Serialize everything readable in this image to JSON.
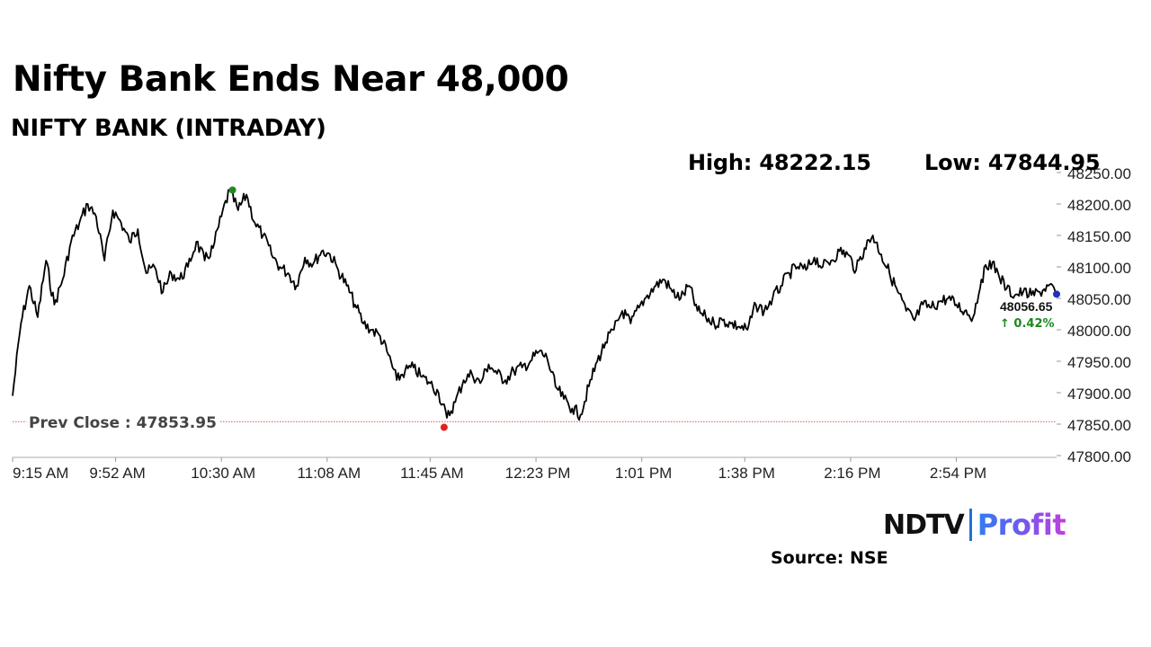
{
  "header": {
    "title": "Nifty Bank Ends Near 48,000",
    "subtitle": "NIFTY BANK (INTRADAY)",
    "high_label": "High: 48222.15",
    "low_label": "Low: 47844.95"
  },
  "footer": {
    "logo_left": "NDTV",
    "logo_right": "Profit",
    "source": "Source: NSE"
  },
  "colors": {
    "line": "#000000",
    "high_marker": "#1f8a1f",
    "low_marker": "#e02020",
    "prev_close_line": "#e05050",
    "change_positive": "#1a8a1a",
    "last_marker": "#2030c0"
  },
  "chart_data": {
    "type": "line",
    "title": "NIFTY BANK (INTRADAY)",
    "xlabel": "",
    "ylabel": "",
    "ylim": [
      47800,
      48250
    ],
    "xlim": [
      "9:15 AM",
      "3:30 PM"
    ],
    "x_ticks": [
      "9:15 AM",
      "9:52 AM",
      "10:30 AM",
      "11:08 AM",
      "11:45 AM",
      "12:23 PM",
      "1:01 PM",
      "1:38 PM",
      "2:16 PM",
      "2:54 PM"
    ],
    "y_ticks": [
      "47800.00",
      "47850.00",
      "47900.00",
      "47950.00",
      "48000.00",
      "48050.00",
      "48100.00",
      "48150.00",
      "48200.00",
      "48250.00"
    ],
    "grid": false,
    "high": 48222.15,
    "high_time": "10:34 AM",
    "low": 47844.95,
    "low_time": "11:50 AM",
    "prev_close": 47853.95,
    "prev_close_label": "Prev Close : 47853.95",
    "last_value": 48056.65,
    "last_value_label": "48056.65",
    "change_label": "↑ 0.42%",
    "series": [
      {
        "x": [
          "9:15 AM",
          "9:18 AM",
          "9:21 AM",
          "9:24 AM",
          "9:27 AM",
          "9:30 AM",
          "9:33 AM",
          "9:36 AM",
          "9:39 AM",
          "9:42 AM",
          "9:45 AM",
          "9:48 AM",
          "9:51 AM",
          "9:54 AM",
          "9:57 AM",
          "10:00 AM",
          "10:03 AM",
          "10:06 AM",
          "10:09 AM",
          "10:12 AM",
          "10:15 AM",
          "10:18 AM",
          "10:21 AM",
          "10:24 AM",
          "10:27 AM",
          "10:30 AM",
          "10:33 AM",
          "10:36 AM",
          "10:39 AM",
          "10:42 AM",
          "10:45 AM",
          "10:48 AM",
          "10:51 AM",
          "10:54 AM",
          "10:57 AM",
          "11:00 AM",
          "11:03 AM",
          "11:06 AM",
          "11:09 AM",
          "11:12 AM",
          "11:15 AM",
          "11:18 AM",
          "11:21 AM",
          "11:24 AM",
          "11:27 AM",
          "11:30 AM",
          "11:33 AM",
          "11:36 AM",
          "11:39 AM",
          "11:42 AM",
          "11:45 AM",
          "11:48 AM",
          "11:51 AM",
          "11:54 AM",
          "11:57 AM",
          "12:00 PM",
          "12:03 PM",
          "12:06 PM",
          "12:09 PM",
          "12:12 PM",
          "12:15 PM",
          "12:18 PM",
          "12:21 PM",
          "12:24 PM",
          "12:27 PM",
          "12:30 PM",
          "12:33 PM",
          "12:36 PM",
          "12:39 PM",
          "12:42 PM",
          "12:45 PM",
          "12:48 PM",
          "12:51 PM",
          "12:54 PM",
          "12:57 PM",
          "1:00 PM",
          "1:03 PM",
          "1:06 PM",
          "1:09 PM",
          "1:12 PM",
          "1:15 PM",
          "1:18 PM",
          "1:21 PM",
          "1:24 PM",
          "1:27 PM",
          "1:30 PM",
          "1:33 PM",
          "1:36 PM",
          "1:39 PM",
          "1:42 PM",
          "1:45 PM",
          "1:48 PM",
          "1:51 PM",
          "1:54 PM",
          "1:57 PM",
          "2:00 PM",
          "2:03 PM",
          "2:06 PM",
          "2:09 PM",
          "2:12 PM",
          "2:15 PM",
          "2:18 PM",
          "2:21 PM",
          "2:24 PM",
          "2:27 PM",
          "2:30 PM",
          "2:33 PM",
          "2:36 PM",
          "2:39 PM",
          "2:42 PM",
          "2:45 PM",
          "2:48 PM",
          "2:51 PM",
          "2:54 PM",
          "2:57 PM",
          "3:00 PM",
          "3:03 PM",
          "3:06 PM",
          "3:09 PM",
          "3:12 PM",
          "3:15 PM",
          "3:18 PM",
          "3:21 PM",
          "3:24 PM",
          "3:27 PM",
          "3:30 PM"
        ],
        "values": [
          47895,
          48010,
          48070,
          48020,
          48110,
          48040,
          48080,
          48140,
          48170,
          48200,
          48180,
          48110,
          48190,
          48170,
          48140,
          48160,
          48090,
          48100,
          48060,
          48090,
          48080,
          48100,
          48140,
          48110,
          48130,
          48180,
          48222,
          48190,
          48215,
          48170,
          48150,
          48120,
          48100,
          48090,
          48070,
          48115,
          48105,
          48125,
          48120,
          48095,
          48070,
          48040,
          48010,
          48000,
          47990,
          47960,
          47920,
          47935,
          47940,
          47925,
          47915,
          47900,
          47860,
          47885,
          47920,
          47930,
          47915,
          47945,
          47930,
          47920,
          47935,
          47940,
          47950,
          47965,
          47955,
          47910,
          47890,
          47875,
          47865,
          47910,
          47950,
          47980,
          48000,
          48030,
          48010,
          48035,
          48055,
          48070,
          48080,
          48060,
          48050,
          48070,
          48030,
          48020,
          48010,
          48015,
          48010,
          48005,
          48000,
          48040,
          48030,
          48050,
          48070,
          48090,
          48100,
          48095,
          48115,
          48100,
          48110,
          48125,
          48120,
          48095,
          48130,
          48150,
          48120,
          48090,
          48060,
          48030,
          48015,
          48040,
          48035,
          48045,
          48050,
          48040,
          48030,
          48020,
          48080,
          48110,
          48090,
          48065,
          48055,
          48060,
          48055,
          48060,
          48070,
          48056.65
        ]
      }
    ]
  }
}
